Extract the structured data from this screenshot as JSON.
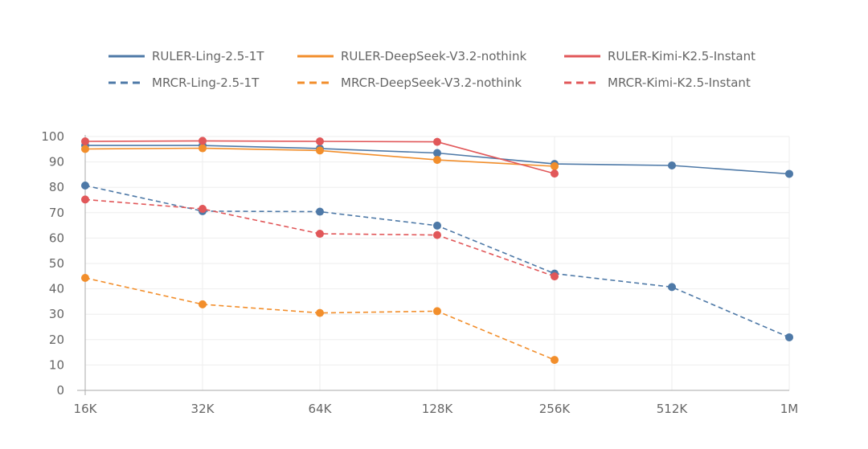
{
  "chart_data": {
    "type": "line",
    "title": "",
    "xlabel": "",
    "ylabel": "",
    "ylim": [
      0,
      100
    ],
    "yticks": [
      0,
      10,
      20,
      30,
      40,
      50,
      60,
      70,
      80,
      90,
      100
    ],
    "grid": true,
    "legend_position": "top",
    "categories": [
      "16K",
      "32K",
      "64K",
      "128K",
      "256K",
      "512K",
      "1M"
    ],
    "series": [
      {
        "name": "RULER-Ling-2.5-1T",
        "color": "#4e79a7",
        "style": "solid",
        "values": [
          96.5,
          96.5,
          95.3,
          93.5,
          89.2,
          88.6,
          85.3
        ]
      },
      {
        "name": "RULER-DeepSeek-V3.2-nothink",
        "color": "#f28e2b",
        "style": "solid",
        "values": [
          95.1,
          95.4,
          94.5,
          90.8,
          88.3,
          null,
          null
        ]
      },
      {
        "name": "RULER-Kimi-K2.5-Instant",
        "color": "#e15759",
        "style": "solid",
        "values": [
          98.1,
          98.3,
          98.1,
          97.9,
          85.4,
          null,
          null
        ]
      },
      {
        "name": "MRCR-Ling-2.5-1T",
        "color": "#4e79a7",
        "style": "dashed",
        "values": [
          80.7,
          70.6,
          70.4,
          64.9,
          46.0,
          40.7,
          20.9
        ]
      },
      {
        "name": "MRCR-DeepSeek-V3.2-nothink",
        "color": "#f28e2b",
        "style": "dashed",
        "values": [
          44.3,
          33.9,
          30.5,
          31.2,
          12.0,
          null,
          null
        ]
      },
      {
        "name": "MRCR-Kimi-K2.5-Instant",
        "color": "#e15759",
        "style": "dashed",
        "values": [
          75.2,
          71.5,
          61.7,
          61.2,
          44.9,
          null,
          null
        ]
      }
    ]
  }
}
